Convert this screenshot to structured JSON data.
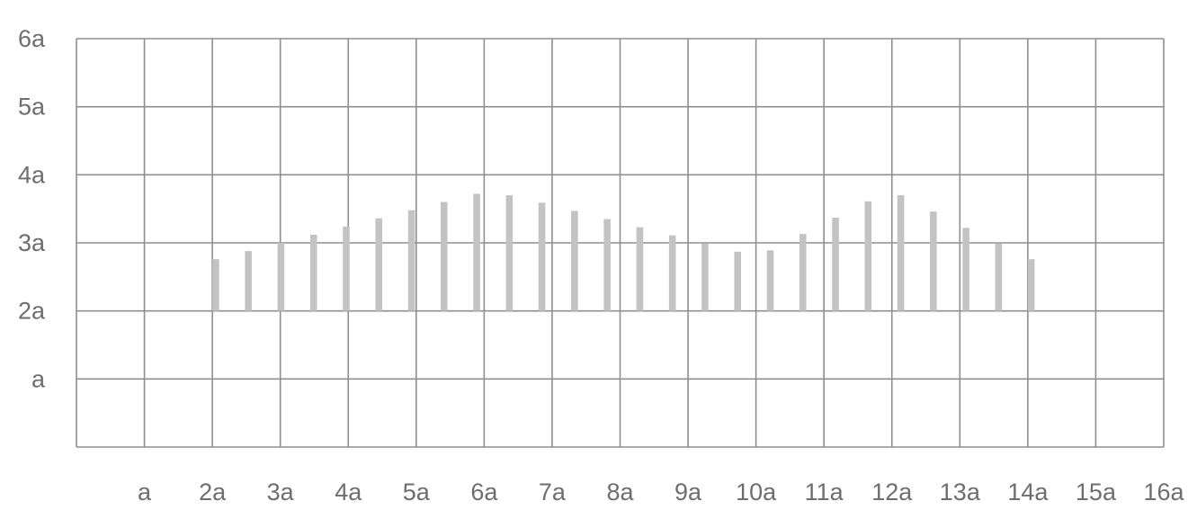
{
  "chart_data": {
    "type": "bar",
    "title": "",
    "xlabel": "",
    "ylabel": "",
    "xlim": [
      0,
      16
    ],
    "ylim": [
      0,
      6
    ],
    "grid": true,
    "x_ticks": [
      "a",
      "2a",
      "3a",
      "4a",
      "5a",
      "6a",
      "7a",
      "8a",
      "9a",
      "10a",
      "11a",
      "12a",
      "13a",
      "14a",
      "15a",
      "16a"
    ],
    "y_ticks": [
      "a",
      "2a",
      "3a",
      "4a",
      "5a",
      "6a"
    ],
    "baseline": 2,
    "bar_width": 0.1,
    "x": [
      2.0,
      2.48,
      2.96,
      3.44,
      3.92,
      4.4,
      4.88,
      5.36,
      5.84,
      6.32,
      6.8,
      7.28,
      7.76,
      8.24,
      8.72,
      9.2,
      9.68,
      10.16,
      10.64,
      11.12,
      11.6,
      12.08,
      12.56,
      13.04,
      13.52,
      14.0
    ],
    "values": [
      2.76,
      2.88,
      3.0,
      3.12,
      3.24,
      3.36,
      3.48,
      3.6,
      3.72,
      3.7,
      3.59,
      3.47,
      3.35,
      3.23,
      3.11,
      2.99,
      2.87,
      2.89,
      3.13,
      3.37,
      3.61,
      3.7,
      3.46,
      3.22,
      2.99,
      2.76
    ]
  },
  "colors": {
    "bar": "#c3c3c3",
    "grid": "#8f8f8f",
    "text": "#6e6e6e"
  }
}
